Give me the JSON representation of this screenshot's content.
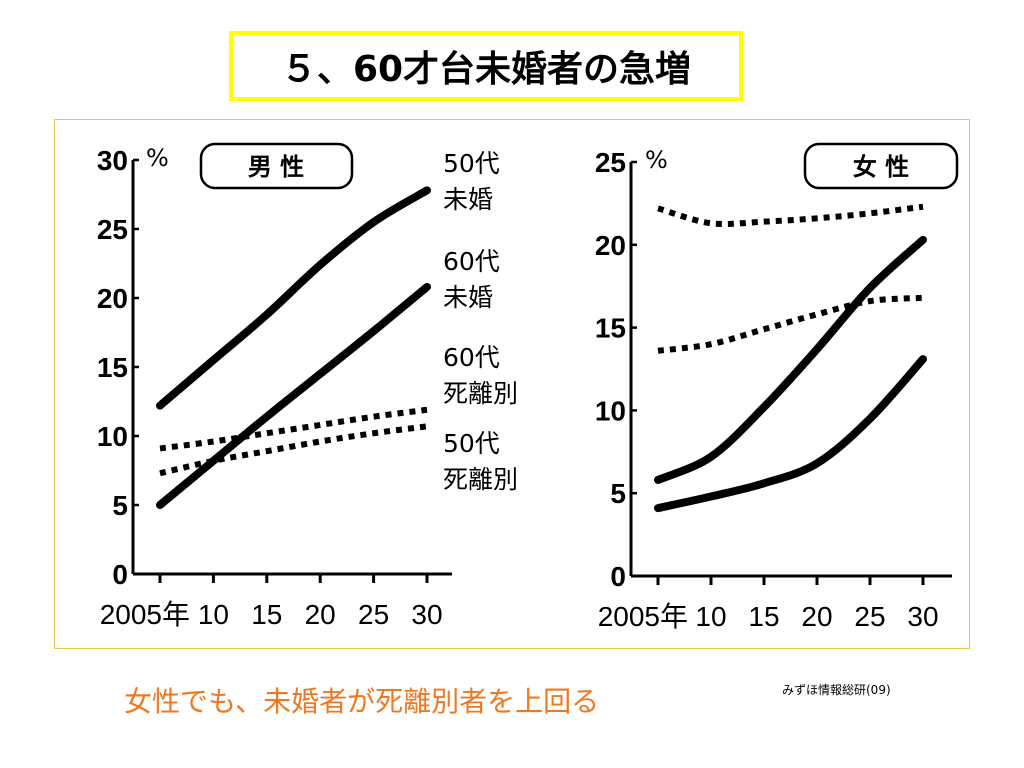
{
  "slide": {
    "title": "５、60才台未婚者の急増",
    "caption": "女性でも、未婚者が死離別者を上回る",
    "source": "みずほ情報総研(09)",
    "caption_color": "#f07820",
    "title_border_color": "#ffff00"
  },
  "chart_data": [
    {
      "type": "line",
      "title": "男 性",
      "ylabel": "%",
      "xlabel": "",
      "x": [
        2005,
        2010,
        2015,
        2020,
        2025,
        2030
      ],
      "xtick_labels": [
        "2005年",
        "10",
        "15",
        "20",
        "25",
        "30"
      ],
      "ylim": [
        0,
        30
      ],
      "yticks": [
        0,
        5,
        10,
        15,
        20,
        25,
        30
      ],
      "ytick_labels": [
        "0",
        "5",
        "10",
        "15",
        "20",
        "25",
        "30"
      ],
      "grid": false,
      "series": [
        {
          "name": "50代未婚",
          "label_line1": "50代",
          "label_line2": "未婚",
          "style": "solid",
          "values": [
            12.2,
            15.5,
            18.8,
            22.4,
            25.5,
            27.8
          ]
        },
        {
          "name": "60代未婚",
          "label_line1": "60代",
          "label_line2": "未婚",
          "style": "solid",
          "values": [
            5.0,
            8.2,
            11.4,
            14.5,
            17.6,
            20.8
          ]
        },
        {
          "name": "60代死離別",
          "label_line1": "60代",
          "label_line2": "死離別",
          "style": "dotted",
          "values": [
            9.1,
            9.6,
            10.2,
            10.8,
            11.4,
            11.9
          ]
        },
        {
          "name": "50代死離別",
          "label_line1": "50代",
          "label_line2": "死離別",
          "style": "dotted",
          "values": [
            7.3,
            8.2,
            8.9,
            9.6,
            10.2,
            10.7
          ]
        }
      ]
    },
    {
      "type": "line",
      "title": "女 性",
      "ylabel": "%",
      "xlabel": "",
      "x": [
        2005,
        2010,
        2015,
        2020,
        2025,
        2030
      ],
      "xtick_labels": [
        "2005年",
        "10",
        "15",
        "20",
        "25",
        "30"
      ],
      "ylim": [
        0,
        25
      ],
      "yticks": [
        0,
        5,
        10,
        15,
        20,
        25
      ],
      "ytick_labels": [
        "0",
        "5",
        "10",
        "15",
        "20",
        "25"
      ],
      "grid": false,
      "series": [
        {
          "name": "60代死離別",
          "style": "dotted",
          "values": [
            22.2,
            21.3,
            21.4,
            21.6,
            21.9,
            22.3
          ]
        },
        {
          "name": "50代死離別",
          "style": "dotted",
          "values": [
            13.6,
            14.0,
            14.9,
            15.8,
            16.6,
            16.8
          ]
        },
        {
          "name": "50代未婚",
          "style": "solid",
          "values": [
            5.8,
            7.2,
            10.2,
            13.7,
            17.4,
            20.3
          ]
        },
        {
          "name": "60代未婚",
          "style": "solid",
          "values": [
            4.1,
            4.8,
            5.6,
            6.8,
            9.5,
            13.1
          ]
        }
      ]
    }
  ]
}
